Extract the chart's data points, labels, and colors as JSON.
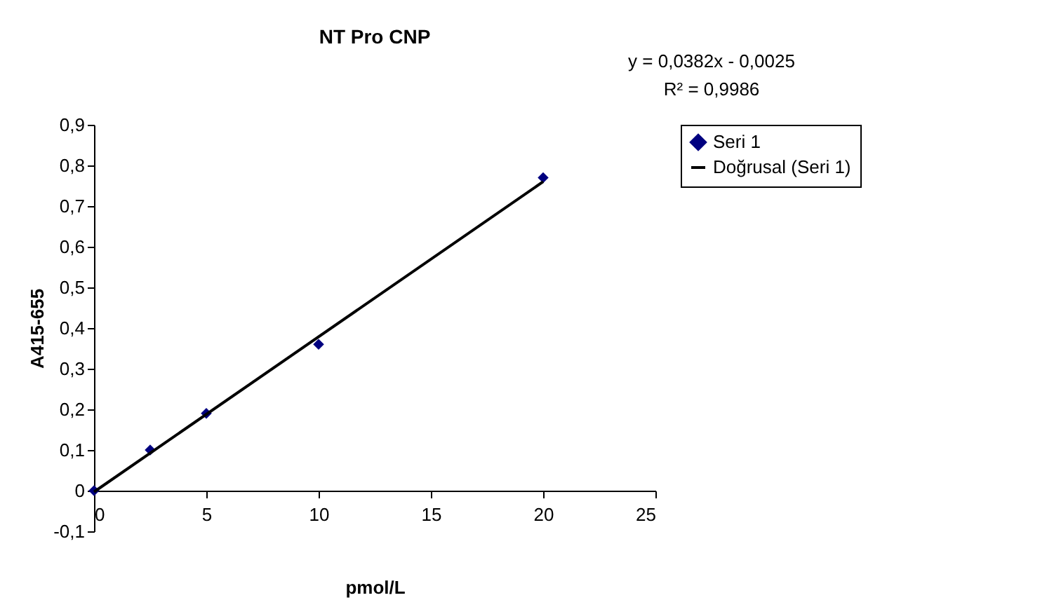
{
  "chart_data": {
    "type": "scatter",
    "title": "NT Pro CNP",
    "xlabel": "pmol/L",
    "ylabel": "A415-655",
    "series": [
      {
        "name": "Seri 1",
        "color": "#000080",
        "marker": "diamond",
        "x": [
          0,
          2.5,
          5,
          10,
          20
        ],
        "values": [
          0,
          0.1,
          0.19,
          0.36,
          0.77
        ]
      },
      {
        "name": "Doğrusal (Seri 1)",
        "type": "line",
        "color": "#000000",
        "line_style": "solid",
        "marker": "none",
        "x": [
          0,
          20
        ],
        "values": [
          -0.003,
          0.76
        ]
      }
    ],
    "xlim": [
      0,
      25
    ],
    "xticks": [
      0,
      5,
      10,
      15,
      20,
      25
    ],
    "ylim": [
      -0.1,
      0.9
    ],
    "yticks": [
      {
        "value": -0.1,
        "label": "-0,1"
      },
      0,
      {
        "value": 0.1,
        "label": "0,1"
      },
      {
        "value": 0.2,
        "label": "0,2"
      },
      {
        "value": 0.3,
        "label": "0,3"
      },
      {
        "value": 0.4,
        "label": "0,4"
      },
      {
        "value": 0.5,
        "label": "0,5"
      },
      {
        "value": 0.6,
        "label": "0,6"
      },
      {
        "value": 0.7,
        "label": "0,7"
      },
      {
        "value": 0.8,
        "label": "0,8"
      },
      {
        "value": 0.9,
        "label": "0,9"
      }
    ],
    "annotations": [
      "y = 0,0382x - 0,0025",
      "R² = 0,9986"
    ],
    "grid": false,
    "legend": "right"
  }
}
